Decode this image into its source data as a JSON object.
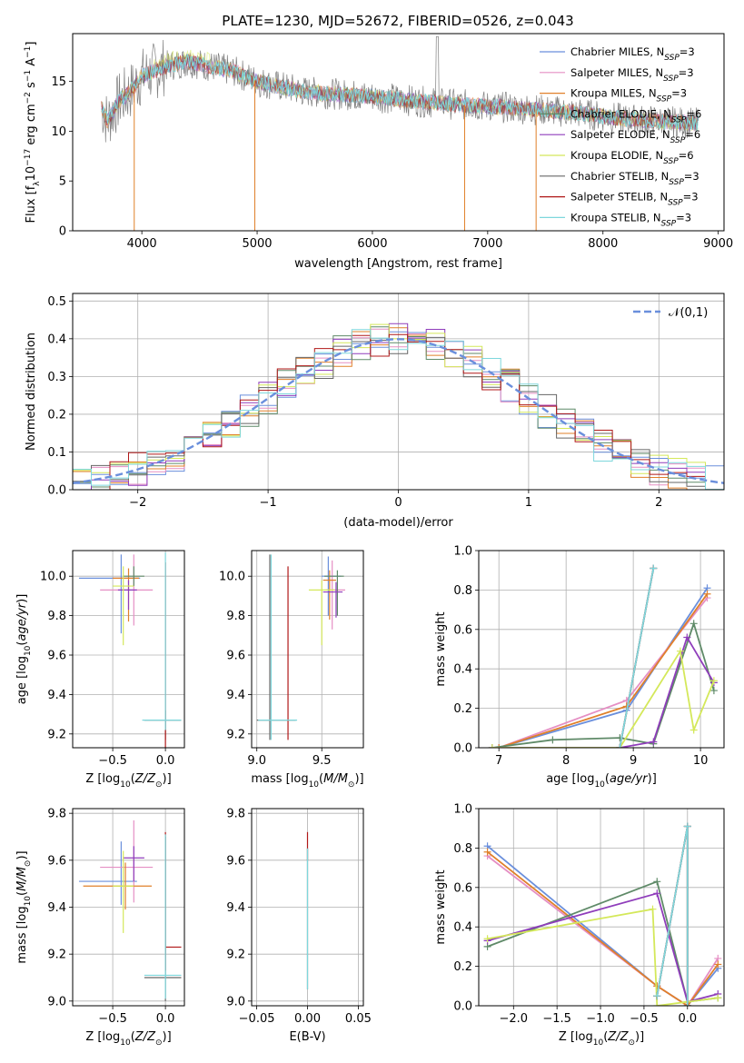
{
  "colors": [
    "#6a8fdc",
    "#e58fc4",
    "#e0802a",
    "#5f8a68",
    "#8f3dbb",
    "#d4e85a",
    "#666666",
    "#b01818",
    "#7ed7dc"
  ],
  "figure": {
    "title": "PLATE=1230, MJD=52672, FIBERID=0526, z=0.043"
  },
  "chart_data": [
    {
      "id": "spectrum",
      "type": "line",
      "xlabel": "wavelength [Angstrom, rest frame]",
      "ylabel": "Flux [f_λ 10^-17 erg cm^-2 s^-1 A^-1]",
      "xlim": [
        3400,
        9050
      ],
      "ylim": [
        0,
        19.8
      ],
      "xticks": [
        4000,
        5000,
        6000,
        7000,
        8000,
        9000
      ],
      "yticks": [
        0,
        5,
        10,
        15
      ],
      "grid": false,
      "legend_position": "top-right",
      "series": [
        {
          "name": "Chabrier MILES, N_SSP=3"
        },
        {
          "name": "Salpeter MILES, N_SSP=3"
        },
        {
          "name": "Kroupa MILES, N_SSP=3"
        },
        {
          "name": "Chabrier ELODIE, N_SSP=6"
        },
        {
          "name": "Salpeter ELODIE, N_SSP=6"
        },
        {
          "name": "Kroupa ELODIE, N_SSP=6"
        },
        {
          "name": "Chabrier STELIB, N_SSP=3"
        },
        {
          "name": "Salpeter STELIB, N_SSP=3"
        },
        {
          "name": "Kroupa STELIB, N_SSP=3"
        }
      ],
      "continuum": [
        [
          3650,
          12.5
        ],
        [
          3700,
          11
        ],
        [
          3800,
          13
        ],
        [
          3900,
          14
        ],
        [
          4000,
          15.5
        ],
        [
          4100,
          16
        ],
        [
          4200,
          16.5
        ],
        [
          4400,
          17
        ],
        [
          4600,
          16.5
        ],
        [
          4800,
          16
        ],
        [
          5000,
          15
        ],
        [
          5200,
          14.5
        ],
        [
          5400,
          14
        ],
        [
          5600,
          13.8
        ],
        [
          6000,
          13.5
        ],
        [
          6400,
          13
        ],
        [
          6600,
          12.8
        ],
        [
          7000,
          12.5
        ],
        [
          7400,
          12.2
        ],
        [
          7800,
          11.8
        ],
        [
          8200,
          11.2
        ],
        [
          8500,
          11
        ],
        [
          8800,
          10.8
        ]
      ],
      "model_range": [
        3650,
        8830
      ],
      "absorption_features": [
        [
          3934,
          0
        ],
        [
          4980,
          0
        ],
        [
          6800,
          0
        ],
        [
          7420,
          0
        ]
      ]
    },
    {
      "id": "residuals",
      "type": "line",
      "xlabel": "(data-model)/error",
      "ylabel": "Normed distribution",
      "xlim": [
        -2.5,
        2.5
      ],
      "ylim": [
        0,
        0.52
      ],
      "xticks": [
        -2,
        -1,
        0,
        1,
        2
      ],
      "yticks": [
        0.0,
        0.1,
        0.2,
        0.3,
        0.4,
        0.5
      ],
      "grid": true,
      "legend_position": "top-right",
      "reference": {
        "name": "𝒩(0,1)",
        "mu": 0,
        "sigma": 1
      }
    },
    {
      "id": "z-age",
      "type": "scatter",
      "xlabel": "Z [log10(Z/Z☉)]",
      "ylabel": "age  [log10(age/yr)]",
      "xlim": [
        -0.88,
        0.18
      ],
      "ylim": [
        9.13,
        10.13
      ],
      "xticks": [
        -0.5,
        0.0
      ],
      "yticks": [
        9.2,
        9.4,
        9.6,
        9.8,
        10.0
      ],
      "grid": true,
      "errorbars": [
        {
          "x": -0.42,
          "y": 9.99,
          "xerr": [
            0.4,
            0.18
          ],
          "yerr": [
            0.28,
            0.12
          ],
          "color": 0
        },
        {
          "x": -0.3,
          "y": 9.93,
          "xerr": [
            0.32,
            0.18
          ],
          "yerr": [
            0.18,
            0.18
          ],
          "color": 1
        },
        {
          "x": -0.35,
          "y": 9.99,
          "xerr": [
            0.15,
            0.1
          ],
          "yerr": [
            0.22,
            0.05
          ],
          "color": 2
        },
        {
          "x": -0.3,
          "y": 10.0,
          "xerr": [
            0.1,
            0.1
          ],
          "yerr": [
            0.05,
            0.05
          ],
          "color": 3
        },
        {
          "x": -0.35,
          "y": 9.93,
          "xerr": [
            0.1,
            0.08
          ],
          "yerr": [
            0.1,
            0.05
          ],
          "color": 4
        },
        {
          "x": -0.4,
          "y": 9.95,
          "xerr": [
            0.1,
            0.1
          ],
          "yerr": [
            0.3,
            0.1
          ],
          "color": 5
        },
        {
          "x": 0.0,
          "y": 9.27,
          "xerr": [
            0.2,
            0.15
          ],
          "yerr": [
            0.1,
            0.05
          ],
          "color": 6
        },
        {
          "x": 0.0,
          "y": 9.22,
          "xerr": [
            0.0,
            0.0
          ],
          "yerr": [
            0.1,
            0.85
          ],
          "color": 7
        },
        {
          "x": 0.0,
          "y": 9.27,
          "xerr": [
            0.22,
            0.15
          ],
          "yerr": [
            0.05,
            0.85
          ],
          "color": 8
        }
      ]
    },
    {
      "id": "mass-age",
      "type": "scatter",
      "xlabel": "mass [log10(M/M☉)]",
      "ylabel": "",
      "xlim": [
        8.96,
        9.82
      ],
      "ylim": [
        9.13,
        10.13
      ],
      "xticks": [
        9.0,
        9.5
      ],
      "yticks": [
        9.2,
        9.4,
        9.6,
        9.8,
        10.0
      ],
      "grid": true,
      "errorbars": [
        {
          "x": 9.55,
          "y": 10.0,
          "xerr": [
            0.05,
            0.1
          ],
          "yerr": [
            0.2,
            0.1
          ],
          "color": 0
        },
        {
          "x": 9.58,
          "y": 9.93,
          "xerr": [
            0.05,
            0.1
          ],
          "yerr": [
            0.2,
            0.15
          ],
          "color": 1
        },
        {
          "x": 9.56,
          "y": 9.98,
          "xerr": [
            0.05,
            0.05
          ],
          "yerr": [
            0.2,
            0.05
          ],
          "color": 2
        },
        {
          "x": 9.62,
          "y": 10.0,
          "xerr": [
            0.1,
            0.05
          ],
          "yerr": [
            0.2,
            0.03
          ],
          "color": 3
        },
        {
          "x": 9.61,
          "y": 9.92,
          "xerr": [
            0.1,
            0.05
          ],
          "yerr": [
            0.13,
            0.05
          ],
          "color": 4
        },
        {
          "x": 9.5,
          "y": 9.93,
          "xerr": [
            0.1,
            0.1
          ],
          "yerr": [
            0.28,
            0.05
          ],
          "color": 5
        },
        {
          "x": 9.1,
          "y": 9.27,
          "xerr": [
            0.1,
            0.2
          ],
          "yerr": [
            0.1,
            0.84
          ],
          "color": 6
        },
        {
          "x": 9.24,
          "y": 9.27,
          "xerr": [
            0.0,
            0.0
          ],
          "yerr": [
            0.1,
            0.78
          ],
          "color": 7
        },
        {
          "x": 9.11,
          "y": 9.27,
          "xerr": [
            0.1,
            0.2
          ],
          "yerr": [
            0.1,
            0.84
          ],
          "color": 8
        }
      ]
    },
    {
      "id": "age-weight",
      "type": "line",
      "xlabel": "age  [log10(age/yr)]",
      "ylabel": "mass weight",
      "xlim": [
        6.7,
        10.35
      ],
      "ylim": [
        0.0,
        1.0
      ],
      "xticks": [
        7,
        8,
        9,
        10
      ],
      "yticks": [
        0.0,
        0.2,
        0.4,
        0.6,
        0.8,
        1.0
      ],
      "grid": true,
      "series": [
        {
          "x": [
            7.0,
            8.9,
            10.1
          ],
          "y": [
            0.0,
            0.19,
            0.81
          ],
          "color": 0
        },
        {
          "x": [
            7.0,
            8.9,
            10.1
          ],
          "y": [
            0.0,
            0.24,
            0.76
          ],
          "color": 1
        },
        {
          "x": [
            7.0,
            8.9,
            10.1
          ],
          "y": [
            0.0,
            0.21,
            0.78
          ],
          "color": 2
        },
        {
          "x": [
            6.9,
            7.8,
            8.8,
            9.3,
            9.9,
            10.2
          ],
          "y": [
            0.0,
            0.04,
            0.05,
            0.02,
            0.63,
            0.29
          ],
          "color": 3
        },
        {
          "x": [
            6.9,
            8.8,
            9.3,
            9.8,
            10.2
          ],
          "y": [
            0.0,
            0.0,
            0.03,
            0.56,
            0.33
          ],
          "color": 4
        },
        {
          "x": [
            6.9,
            8.8,
            9.7,
            9.9,
            10.2
          ],
          "y": [
            0.0,
            0.0,
            0.49,
            0.09,
            0.34
          ],
          "color": 5
        },
        {
          "x": [
            8.8,
            9.3
          ],
          "y": [
            0.0,
            0.91
          ],
          "color": 6
        },
        {
          "x": [
            8.8,
            9.3
          ],
          "y": [
            0.0,
            0.91
          ],
          "color": 7
        },
        {
          "x": [
            8.8,
            9.3
          ],
          "y": [
            0.0,
            0.91
          ],
          "color": 8
        }
      ]
    },
    {
      "id": "z-mass",
      "type": "scatter",
      "xlabel": "Z [log10(Z/Z☉)]",
      "ylabel": "mass [log10(M/M☉)]",
      "xlim": [
        -0.88,
        0.18
      ],
      "ylim": [
        8.98,
        9.82
      ],
      "xticks": [
        -0.5,
        0.0
      ],
      "yticks": [
        9.0,
        9.2,
        9.4,
        9.6,
        9.8
      ],
      "grid": true,
      "errorbars": [
        {
          "x": -0.42,
          "y": 9.51,
          "xerr": [
            0.4,
            0.15
          ],
          "yerr": [
            0.1,
            0.17
          ],
          "color": 0
        },
        {
          "x": -0.3,
          "y": 9.57,
          "xerr": [
            0.32,
            0.18
          ],
          "yerr": [
            0.15,
            0.2
          ],
          "color": 1
        },
        {
          "x": -0.38,
          "y": 9.49,
          "xerr": [
            0.4,
            0.25
          ],
          "yerr": [
            0.1,
            0.1
          ],
          "color": 2
        },
        {
          "x": -0.3,
          "y": 9.61,
          "xerr": [
            0.1,
            0.1
          ],
          "yerr": [
            0.1,
            0.05
          ],
          "color": 4
        },
        {
          "x": -0.4,
          "y": 9.49,
          "xerr": [
            0.1,
            0.1
          ],
          "yerr": [
            0.2,
            0.15
          ],
          "color": 5
        },
        {
          "x": 0.0,
          "y": 9.1,
          "xerr": [
            0.2,
            0.15
          ],
          "yerr": [
            0.1,
            0.6
          ],
          "color": 6
        },
        {
          "x": 0.0,
          "y": 9.23,
          "xerr": [
            0.0,
            0.15
          ],
          "yerr": [
            0.1,
            0.49
          ],
          "color": 7
        },
        {
          "x": 0.0,
          "y": 9.11,
          "xerr": [
            0.2,
            0.15
          ],
          "yerr": [
            0.1,
            0.6
          ],
          "color": 8
        }
      ]
    },
    {
      "id": "ebv-mass",
      "type": "scatter",
      "xlabel": "E(B-V)",
      "ylabel": "",
      "xlim": [
        -0.055,
        0.055
      ],
      "ylim": [
        8.98,
        9.82
      ],
      "xticks": [
        -0.05,
        0.0,
        0.05
      ],
      "yticks": [
        9.0,
        9.2,
        9.4,
        9.6,
        9.8
      ],
      "grid": true,
      "errorbars": [
        {
          "x": 0.0,
          "y": 9.63,
          "xerr": [
            0,
            0
          ],
          "yerr": [
            0.03,
            0.09
          ],
          "color": 7
        },
        {
          "x": 0.0,
          "y": 9.3,
          "xerr": [
            0,
            0
          ],
          "yerr": [
            0.25,
            0.35
          ],
          "color": 6
        },
        {
          "x": 0.0,
          "y": 9.3,
          "xerr": [
            0,
            0
          ],
          "yerr": [
            0.25,
            0.35
          ],
          "color": 8
        }
      ]
    },
    {
      "id": "z-weight",
      "type": "line",
      "xlabel": "Z [log10(Z/Z☉)]",
      "ylabel": "mass weight",
      "xlim": [
        -2.4,
        0.42
      ],
      "ylim": [
        0.0,
        1.0
      ],
      "xticks": [
        -2.0,
        -1.5,
        -1.0,
        -0.5,
        0.0
      ],
      "yticks": [
        0.0,
        0.2,
        0.4,
        0.6,
        0.8,
        1.0
      ],
      "grid": true,
      "series": [
        {
          "x": [
            -2.3,
            -0.35,
            0.0,
            0.35
          ],
          "y": [
            0.81,
            0.1,
            0.0,
            0.19
          ],
          "color": 0
        },
        {
          "x": [
            -2.3,
            -0.35,
            0.0,
            0.35
          ],
          "y": [
            0.76,
            0.1,
            0.0,
            0.24
          ],
          "color": 1
        },
        {
          "x": [
            -2.3,
            -0.35,
            0.0,
            0.35
          ],
          "y": [
            0.78,
            0.1,
            0.0,
            0.21
          ],
          "color": 2
        },
        {
          "x": [
            -2.3,
            -0.35,
            0.0,
            0.35
          ],
          "y": [
            0.3,
            0.63,
            0.02,
            0.04
          ],
          "color": 3
        },
        {
          "x": [
            -2.3,
            -0.35,
            0.0,
            0.35
          ],
          "y": [
            0.33,
            0.57,
            0.02,
            0.06
          ],
          "color": 4
        },
        {
          "x": [
            -2.3,
            -0.4,
            -0.35,
            0.0,
            0.35
          ],
          "y": [
            0.34,
            0.49,
            0.0,
            0.02,
            0.04
          ],
          "color": 5
        },
        {
          "x": [
            -0.35,
            0.0,
            0.0
          ],
          "y": [
            0.05,
            0.91,
            0.0
          ],
          "color": 6
        },
        {
          "x": [
            -0.35,
            0.0,
            0.0
          ],
          "y": [
            0.05,
            0.91,
            0.0
          ],
          "color": 7
        },
        {
          "x": [
            -0.35,
            0.0,
            0.0
          ],
          "y": [
            0.05,
            0.91,
            0.0
          ],
          "color": 8
        }
      ]
    }
  ]
}
